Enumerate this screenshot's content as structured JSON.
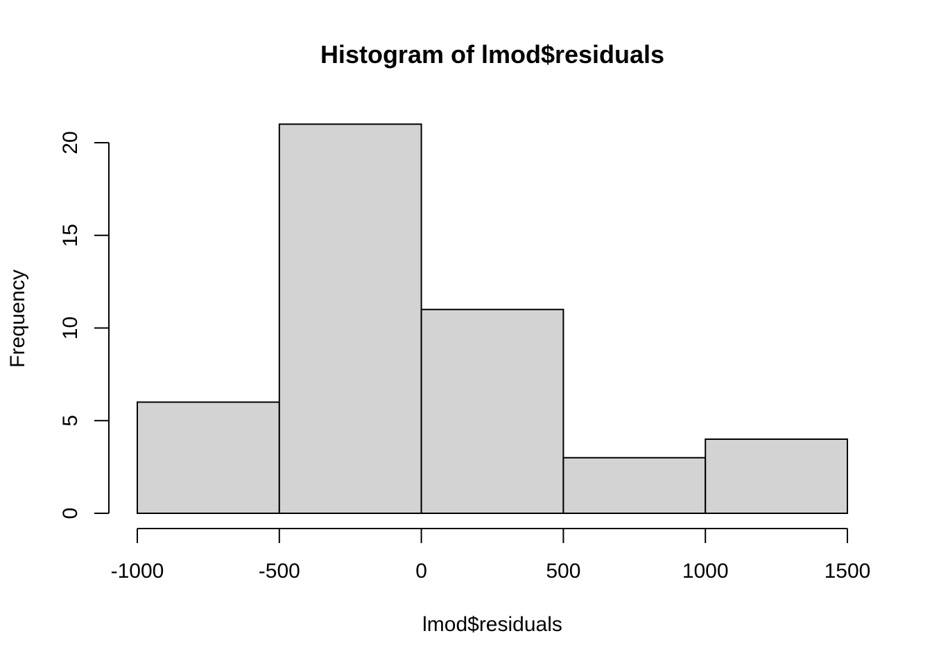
{
  "chart_data": {
    "type": "bar",
    "subtype": "histogram",
    "title": "Histogram of lmod$residuals",
    "xlabel": "lmod$residuals",
    "ylabel": "Frequency",
    "bins": [
      {
        "from": -1000,
        "to": -500,
        "count": 6
      },
      {
        "from": -500,
        "to": 0,
        "count": 21
      },
      {
        "from": 0,
        "to": 500,
        "count": 11
      },
      {
        "from": 500,
        "to": 1000,
        "count": 3
      },
      {
        "from": 1000,
        "to": 1500,
        "count": 4
      }
    ],
    "xlim": [
      -1000,
      1500
    ],
    "ylim": [
      0,
      21
    ],
    "xticks": [
      -1000,
      -500,
      0,
      500,
      1000,
      1500
    ],
    "xtick_labels": [
      "-1000",
      "-500",
      "0",
      "500",
      "1000",
      "1500"
    ],
    "yticks": [
      0,
      5,
      10,
      15,
      20
    ],
    "ytick_labels": [
      "0",
      "5",
      "10",
      "15",
      "20"
    ],
    "bar_color": "#d3d3d3",
    "edge_color": "#000000",
    "grid": false,
    "legend": "none"
  }
}
